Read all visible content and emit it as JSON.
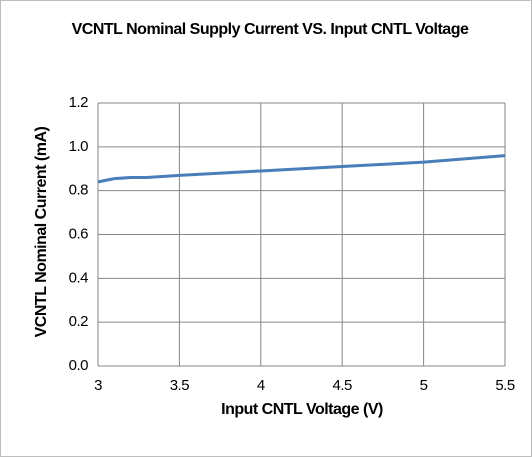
{
  "chart_data": {
    "type": "line",
    "title": "VCNTL Nominal Supply Current VS. Input  CNTL Voltage",
    "x_label": "Input CNTL Voltage (V)",
    "y_label": "VCNTL Nominal Current (mA)",
    "x": [
      3,
      3.1,
      3.2,
      3.3,
      3.5,
      4,
      4.5,
      5,
      5.5
    ],
    "series": [
      {
        "name": "VCNTL Nominal Current",
        "color": "#4a7ebb",
        "values": [
          0.84,
          0.855,
          0.86,
          0.86,
          0.87,
          0.89,
          0.91,
          0.93,
          0.96
        ]
      }
    ],
    "xlim": [
      3,
      5.5
    ],
    "xticks": [
      3,
      3.5,
      4,
      4.5,
      5,
      5.5
    ],
    "ylim": [
      0,
      1.2
    ],
    "yticks": [
      {
        "value": 0,
        "label": "0.0"
      },
      0.2,
      0.4,
      0.6,
      0.8,
      {
        "value": 1,
        "label": "1.0"
      },
      1.2
    ],
    "grid": true
  }
}
